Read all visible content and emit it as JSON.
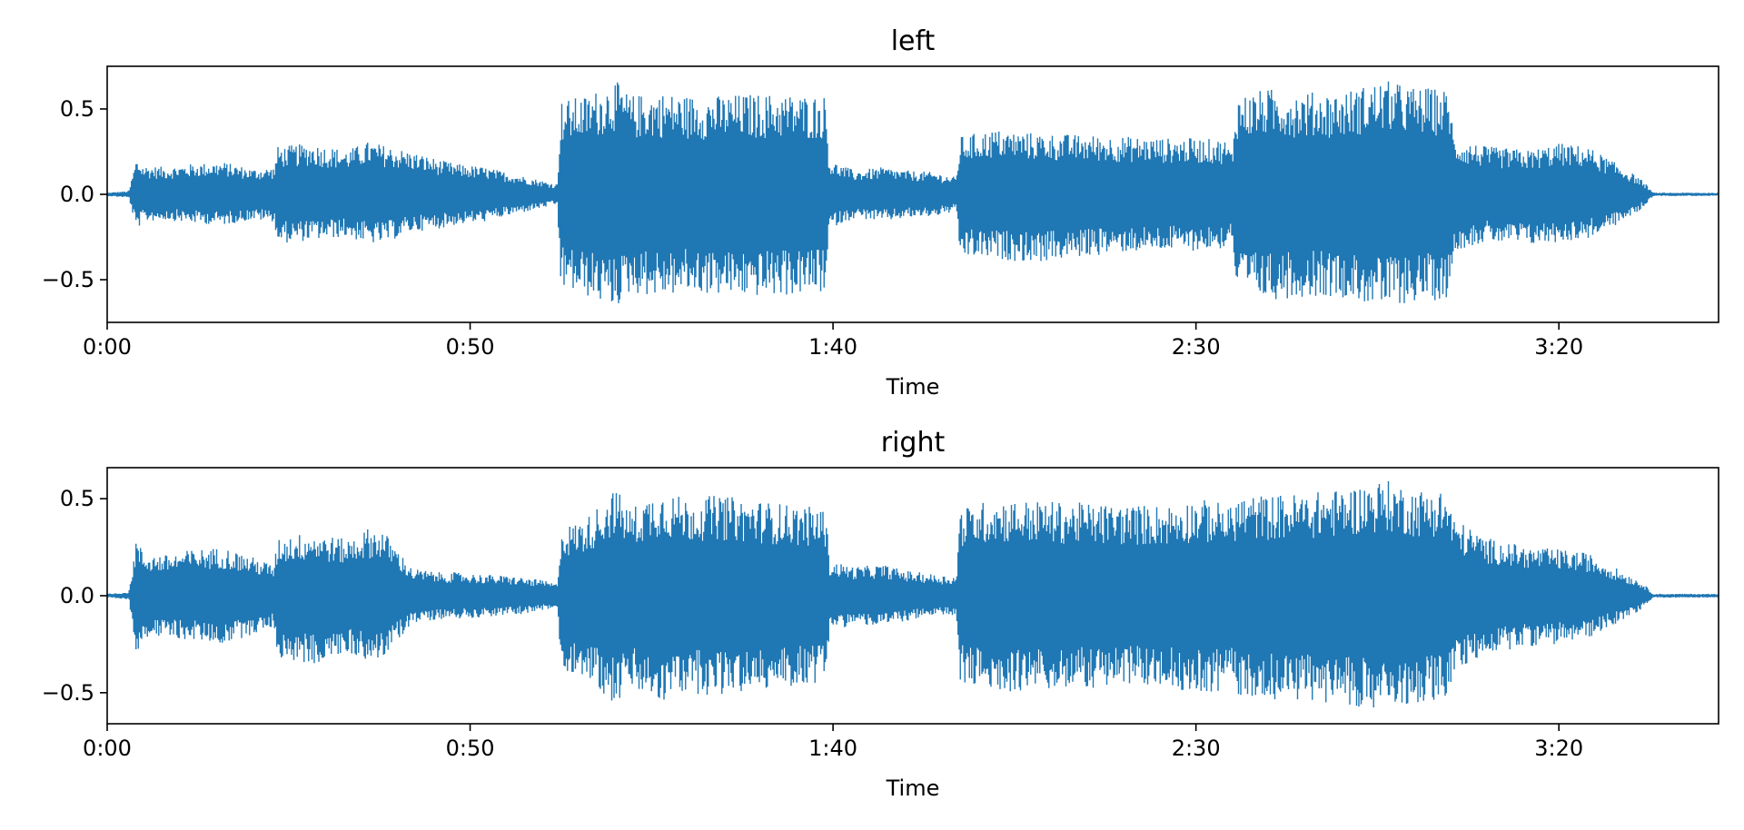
{
  "chart_data": [
    {
      "type": "line",
      "title": "left",
      "xlabel": "Time",
      "ylabel": "",
      "x_unit": "seconds",
      "xlim": [
        0,
        222
      ],
      "ylim": [
        -0.75,
        0.75
      ],
      "xticks": [
        0,
        50,
        100,
        150,
        200
      ],
      "xtick_labels": [
        "0:00",
        "0:50",
        "1:40",
        "2:30",
        "3:20"
      ],
      "yticks": [
        0.5,
        0.0,
        -0.5
      ],
      "ytick_labels": [
        "0.5",
        "0.0",
        "−0.5"
      ],
      "color": "#1f77b4",
      "envelope": {
        "x": [
          0,
          3,
          4,
          5,
          8,
          12,
          16,
          20,
          23,
          23.5,
          28,
          33,
          36,
          38,
          42,
          46,
          48,
          52,
          56,
          60,
          62,
          62.5,
          66,
          70,
          72,
          76,
          80,
          84,
          88,
          92,
          99,
          99.5,
          103,
          107,
          110,
          114,
          117,
          117.5,
          122,
          128,
          134,
          140,
          146,
          150,
          154,
          155,
          155.5,
          160,
          165,
          170,
          176,
          180,
          184,
          185,
          185.5,
          190,
          196,
          200,
          204,
          208,
          211,
          212,
          213,
          214,
          222
        ],
        "max": [
          0.01,
          0.02,
          0.21,
          0.17,
          0.16,
          0.18,
          0.19,
          0.15,
          0.16,
          0.28,
          0.3,
          0.26,
          0.31,
          0.29,
          0.25,
          0.2,
          0.18,
          0.16,
          0.12,
          0.08,
          0.06,
          0.55,
          0.58,
          0.67,
          0.58,
          0.6,
          0.58,
          0.58,
          0.59,
          0.59,
          0.58,
          0.2,
          0.14,
          0.16,
          0.14,
          0.13,
          0.1,
          0.34,
          0.38,
          0.36,
          0.35,
          0.34,
          0.33,
          0.33,
          0.32,
          0.25,
          0.58,
          0.62,
          0.6,
          0.6,
          0.67,
          0.63,
          0.62,
          0.6,
          0.33,
          0.28,
          0.26,
          0.3,
          0.28,
          0.18,
          0.1,
          0.06,
          0.01,
          0.01,
          0.01
        ],
        "min": [
          -0.01,
          -0.02,
          -0.21,
          -0.16,
          -0.15,
          -0.17,
          -0.18,
          -0.15,
          -0.16,
          -0.29,
          -0.27,
          -0.25,
          -0.29,
          -0.29,
          -0.22,
          -0.2,
          -0.18,
          -0.16,
          -0.12,
          -0.08,
          -0.06,
          -0.55,
          -0.6,
          -0.67,
          -0.58,
          -0.6,
          -0.58,
          -0.59,
          -0.6,
          -0.6,
          -0.58,
          -0.2,
          -0.14,
          -0.16,
          -0.14,
          -0.13,
          -0.1,
          -0.37,
          -0.38,
          -0.4,
          -0.37,
          -0.34,
          -0.33,
          -0.33,
          -0.32,
          -0.25,
          -0.58,
          -0.62,
          -0.6,
          -0.6,
          -0.67,
          -0.63,
          -0.62,
          -0.6,
          -0.33,
          -0.28,
          -0.3,
          -0.28,
          -0.26,
          -0.18,
          -0.1,
          -0.06,
          -0.01,
          -0.01,
          -0.01
        ]
      }
    },
    {
      "type": "line",
      "title": "right",
      "xlabel": "Time",
      "ylabel": "",
      "x_unit": "seconds",
      "xlim": [
        0,
        222
      ],
      "ylim": [
        -0.66,
        0.66
      ],
      "xticks": [
        0,
        50,
        100,
        150,
        200
      ],
      "xtick_labels": [
        "0:00",
        "0:50",
        "1:40",
        "2:30",
        "3:20"
      ],
      "yticks": [
        0.5,
        0.0,
        -0.5
      ],
      "ytick_labels": [
        "0.5",
        "0.0",
        "−0.5"
      ],
      "color": "#1f77b4",
      "envelope": {
        "x": [
          0,
          3,
          4,
          5,
          8,
          12,
          16,
          20,
          23,
          23.5,
          28,
          33,
          36,
          38,
          42,
          46,
          48,
          52,
          56,
          60,
          62,
          62.5,
          66,
          70,
          72,
          76,
          80,
          84,
          88,
          92,
          99,
          99.5,
          103,
          107,
          110,
          114,
          117,
          117.5,
          122,
          128,
          134,
          140,
          146,
          150,
          154,
          155,
          155.5,
          160,
          165,
          170,
          176,
          180,
          184,
          185,
          185.5,
          190,
          196,
          200,
          204,
          208,
          211,
          212,
          213,
          214,
          222
        ],
        "max": [
          0.01,
          0.02,
          0.3,
          0.22,
          0.21,
          0.24,
          0.25,
          0.2,
          0.16,
          0.3,
          0.33,
          0.29,
          0.35,
          0.34,
          0.14,
          0.12,
          0.12,
          0.11,
          0.1,
          0.08,
          0.06,
          0.35,
          0.4,
          0.56,
          0.45,
          0.55,
          0.5,
          0.52,
          0.5,
          0.48,
          0.45,
          0.18,
          0.15,
          0.16,
          0.13,
          0.11,
          0.1,
          0.45,
          0.5,
          0.49,
          0.48,
          0.47,
          0.47,
          0.5,
          0.48,
          0.45,
          0.52,
          0.52,
          0.53,
          0.55,
          0.6,
          0.55,
          0.55,
          0.5,
          0.4,
          0.3,
          0.25,
          0.24,
          0.22,
          0.14,
          0.08,
          0.05,
          0.01,
          0.01,
          0.01
        ],
        "min": [
          -0.01,
          -0.02,
          -0.3,
          -0.21,
          -0.22,
          -0.23,
          -0.25,
          -0.2,
          -0.16,
          -0.32,
          -0.36,
          -0.3,
          -0.33,
          -0.33,
          -0.14,
          -0.12,
          -0.12,
          -0.11,
          -0.1,
          -0.08,
          -0.06,
          -0.38,
          -0.42,
          -0.57,
          -0.48,
          -0.56,
          -0.5,
          -0.52,
          -0.5,
          -0.48,
          -0.45,
          -0.18,
          -0.15,
          -0.16,
          -0.13,
          -0.11,
          -0.1,
          -0.46,
          -0.5,
          -0.49,
          -0.48,
          -0.47,
          -0.47,
          -0.5,
          -0.5,
          -0.45,
          -0.52,
          -0.53,
          -0.55,
          -0.55,
          -0.61,
          -0.55,
          -0.55,
          -0.5,
          -0.4,
          -0.3,
          -0.26,
          -0.25,
          -0.22,
          -0.14,
          -0.08,
          -0.05,
          -0.01,
          -0.01,
          -0.01
        ]
      }
    }
  ]
}
